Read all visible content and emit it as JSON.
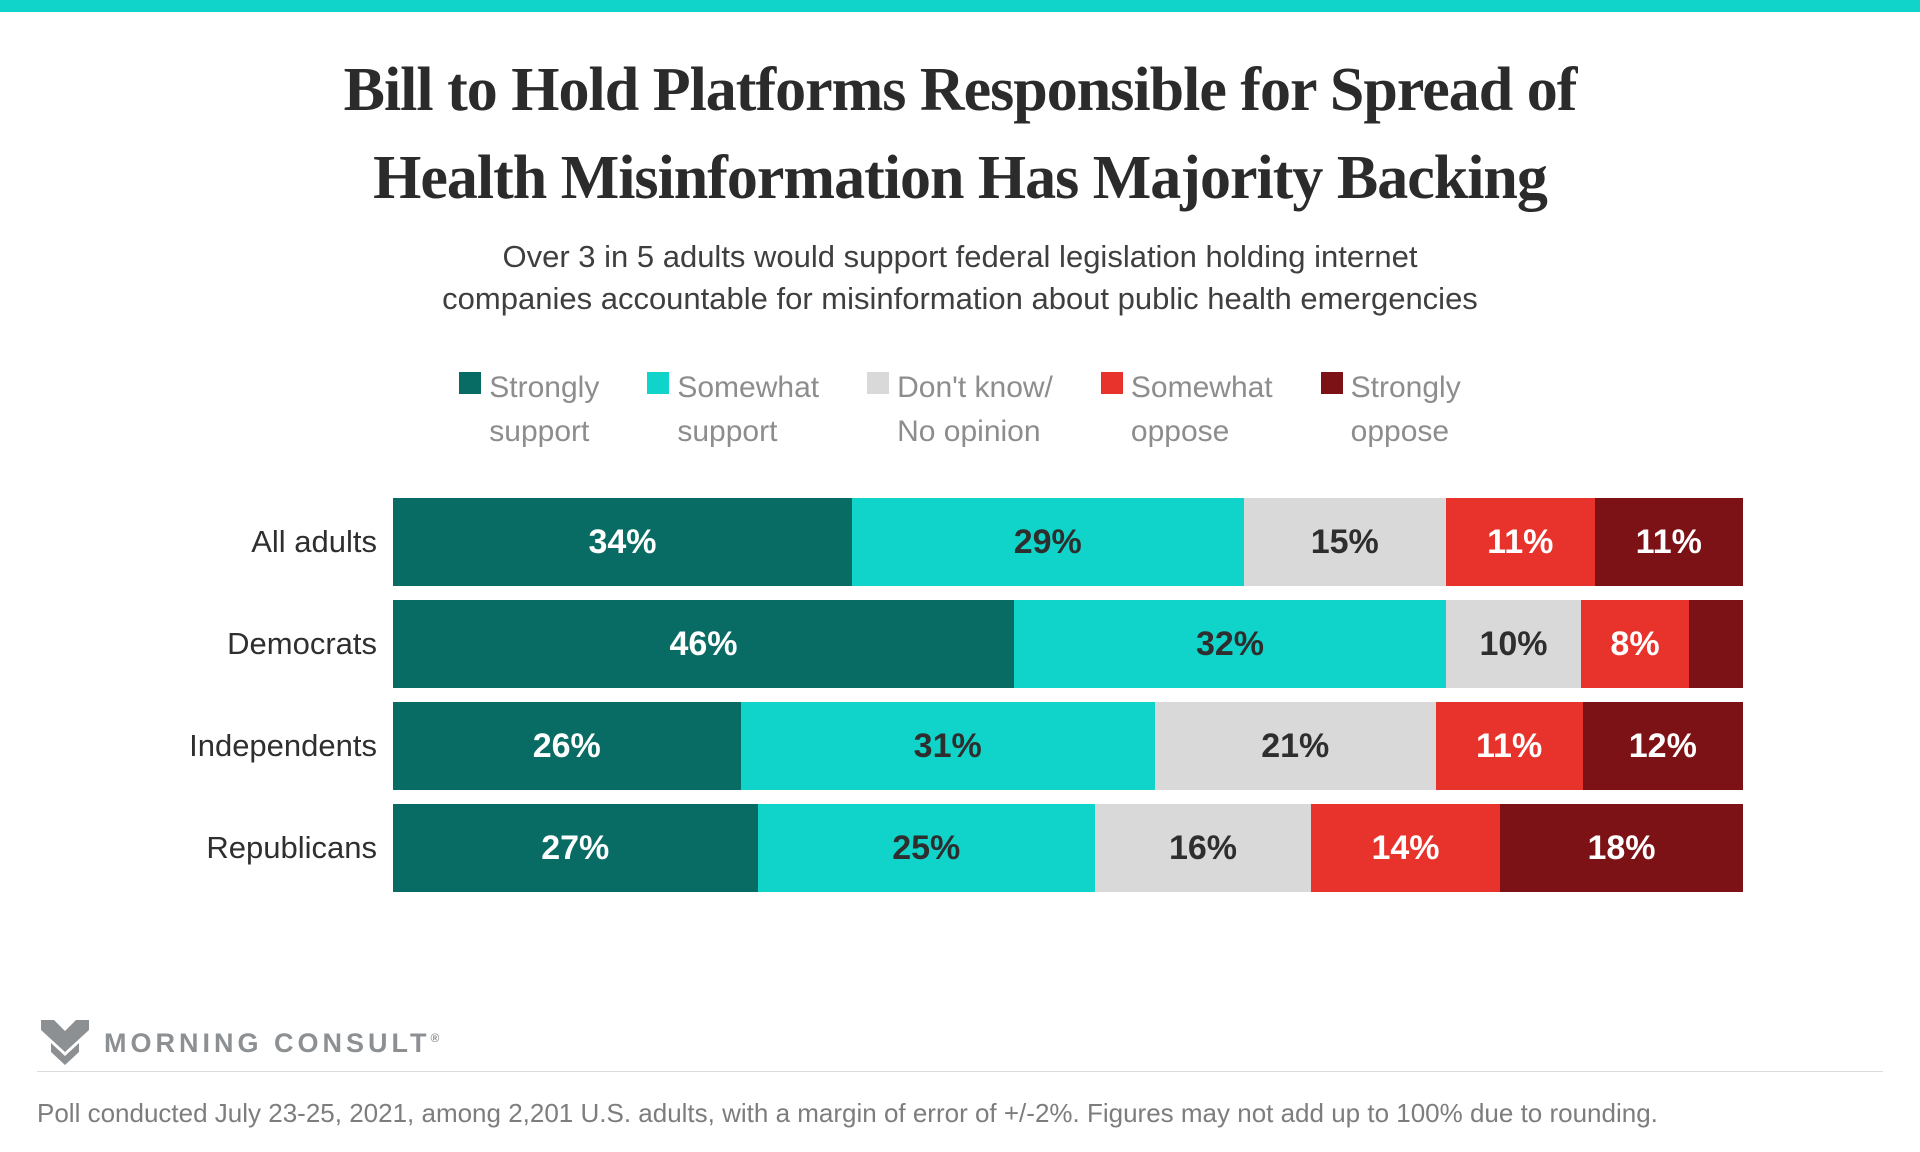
{
  "colors": {
    "accent_teal": "#10d4c9",
    "strongly_support": "#086b64",
    "somewhat_support": "#10d4c9",
    "dont_know": "#d9d9d9",
    "somewhat_oppose": "#e8332c",
    "strongly_oppose": "#7c1215"
  },
  "title": {
    "line1": "Bill to Hold Platforms Responsible for Spread of",
    "line2": "Health Misinformation Has Majority Backing"
  },
  "subtitle": {
    "line1": "Over 3 in 5 adults would support federal legislation holding internet",
    "line2": "companies accountable for misinformation about public health emergencies"
  },
  "legend": [
    {
      "lines": [
        "Strongly",
        "support"
      ],
      "color": "#086b64"
    },
    {
      "lines": [
        "Somewhat",
        "support"
      ],
      "color": "#10d4c9"
    },
    {
      "lines": [
        "Don't know/",
        "No opinion"
      ],
      "color": "#d9d9d9"
    },
    {
      "lines": [
        "Somewhat",
        "oppose"
      ],
      "color": "#e8332c"
    },
    {
      "lines": [
        "Strongly",
        "oppose"
      ],
      "color": "#7c1215"
    }
  ],
  "chart_data": {
    "type": "bar",
    "orientation": "horizontal-stacked",
    "unit": "%",
    "xlim": [
      0,
      100
    ],
    "label_hidden_below": 5,
    "categories": [
      "All adults",
      "Democrats",
      "Independents",
      "Republicans"
    ],
    "series": [
      {
        "name": "Strongly support",
        "color": "#086b64",
        "text_color": "#ffffff",
        "values": [
          34,
          46,
          26,
          27
        ]
      },
      {
        "name": "Somewhat support",
        "color": "#10d4c9",
        "text_color": "#2e2e2e",
        "values": [
          29,
          32,
          31,
          25
        ]
      },
      {
        "name": "Don't know/No opinion",
        "color": "#d9d9d9",
        "text_color": "#2e2e2e",
        "values": [
          15,
          10,
          21,
          16
        ]
      },
      {
        "name": "Somewhat oppose",
        "color": "#e8332c",
        "text_color": "#ffffff",
        "values": [
          11,
          8,
          11,
          14
        ]
      },
      {
        "name": "Strongly oppose",
        "color": "#7c1215",
        "text_color": "#ffffff",
        "values": [
          11,
          4,
          12,
          18
        ]
      }
    ],
    "notes": "Democrats Strongly oppose segment (4%) is drawn without a visible percentage label"
  },
  "footer": {
    "brand": "MORNING CONSULT",
    "brand_reg": "®",
    "note": "Poll conducted July 23-25, 2021, among 2,201 U.S. adults, with a margin of error of +/-2%. Figures may not add up to 100% due to rounding."
  }
}
